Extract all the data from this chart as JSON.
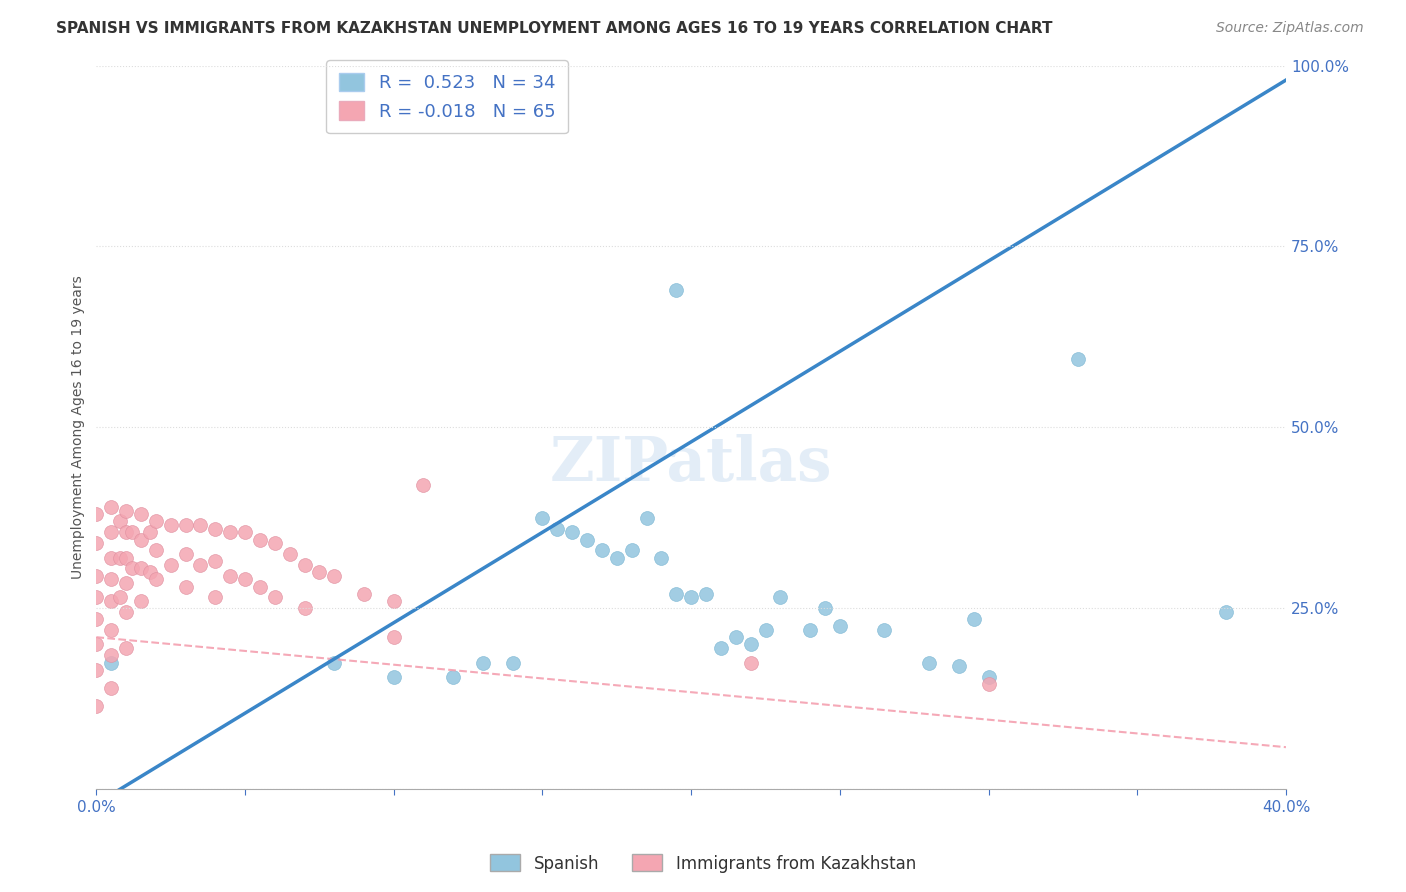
{
  "title": "SPANISH VS IMMIGRANTS FROM KAZAKHSTAN UNEMPLOYMENT AMONG AGES 16 TO 19 YEARS CORRELATION CHART",
  "source": "Source: ZipAtlas.com",
  "ylabel": "Unemployment Among Ages 16 to 19 years",
  "xlim": [
    0.0,
    0.4
  ],
  "ylim": [
    0.0,
    1.0
  ],
  "ytick_right_labels": [
    "100.0%",
    "75.0%",
    "50.0%",
    "25.0%",
    ""
  ],
  "ytick_right_values": [
    1.0,
    0.75,
    0.5,
    0.25,
    0.0
  ],
  "watermark": "ZIPatlas",
  "blue_R": 0.523,
  "blue_N": 34,
  "pink_R": -0.018,
  "pink_N": 65,
  "blue_color": "#92C5DE",
  "pink_color": "#F4A6B2",
  "trendline_blue_color": "#3A86C8",
  "trendline_pink_color": "#F4A6B2",
  "blue_points_x": [
    0.005,
    0.08,
    0.1,
    0.12,
    0.13,
    0.14,
    0.15,
    0.155,
    0.16,
    0.165,
    0.17,
    0.175,
    0.18,
    0.185,
    0.19,
    0.195,
    0.2,
    0.205,
    0.21,
    0.215,
    0.22,
    0.225,
    0.23,
    0.24,
    0.245,
    0.25,
    0.265,
    0.28,
    0.29,
    0.3,
    0.33,
    0.195,
    0.295,
    0.38
  ],
  "blue_points_y": [
    0.175,
    0.175,
    0.155,
    0.155,
    0.175,
    0.175,
    0.375,
    0.36,
    0.355,
    0.345,
    0.33,
    0.32,
    0.33,
    0.375,
    0.32,
    0.27,
    0.265,
    0.27,
    0.195,
    0.21,
    0.2,
    0.22,
    0.265,
    0.22,
    0.25,
    0.225,
    0.22,
    0.175,
    0.17,
    0.155,
    0.595,
    0.69,
    0.235,
    0.245
  ],
  "pink_points_x": [
    0.0,
    0.0,
    0.0,
    0.0,
    0.0,
    0.0,
    0.0,
    0.0,
    0.005,
    0.005,
    0.005,
    0.005,
    0.005,
    0.005,
    0.005,
    0.005,
    0.008,
    0.008,
    0.008,
    0.01,
    0.01,
    0.01,
    0.01,
    0.01,
    0.01,
    0.012,
    0.012,
    0.015,
    0.015,
    0.015,
    0.015,
    0.018,
    0.018,
    0.02,
    0.02,
    0.02,
    0.025,
    0.025,
    0.03,
    0.03,
    0.03,
    0.035,
    0.035,
    0.04,
    0.04,
    0.04,
    0.045,
    0.045,
    0.05,
    0.05,
    0.055,
    0.055,
    0.06,
    0.06,
    0.065,
    0.07,
    0.07,
    0.075,
    0.08,
    0.09,
    0.1,
    0.1,
    0.11,
    0.22,
    0.3
  ],
  "pink_points_y": [
    0.38,
    0.34,
    0.295,
    0.265,
    0.235,
    0.2,
    0.165,
    0.115,
    0.39,
    0.355,
    0.32,
    0.29,
    0.26,
    0.22,
    0.185,
    0.14,
    0.37,
    0.32,
    0.265,
    0.385,
    0.355,
    0.32,
    0.285,
    0.245,
    0.195,
    0.355,
    0.305,
    0.38,
    0.345,
    0.305,
    0.26,
    0.355,
    0.3,
    0.37,
    0.33,
    0.29,
    0.365,
    0.31,
    0.365,
    0.325,
    0.28,
    0.365,
    0.31,
    0.36,
    0.315,
    0.265,
    0.355,
    0.295,
    0.355,
    0.29,
    0.345,
    0.28,
    0.34,
    0.265,
    0.325,
    0.31,
    0.25,
    0.3,
    0.295,
    0.27,
    0.26,
    0.21,
    0.42,
    0.175,
    0.145
  ],
  "title_fontsize": 11,
  "axis_label_fontsize": 10,
  "tick_fontsize": 11,
  "legend_fontsize": 12,
  "source_fontsize": 10,
  "watermark_fontsize": 44,
  "background_color": "#FFFFFF",
  "grid_color": "#DDDDDD"
}
